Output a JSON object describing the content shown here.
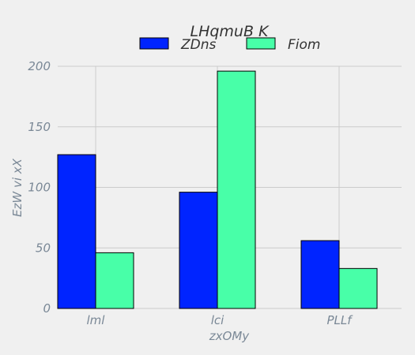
{
  "chart_data": {
    "type": "bar",
    "title": "LHqmuB K",
    "xlabel": "zxOMy",
    "ylabel": "EzW vi xX",
    "categories": [
      "lml",
      "lci",
      "PLLf"
    ],
    "series": [
      {
        "name": "ZDns",
        "values": [
          127,
          96,
          56
        ],
        "color": "#0024ff"
      },
      {
        "name": "Fiom",
        "values": [
          46,
          196,
          33
        ],
        "color": "#48ffa8"
      }
    ],
    "ylim": [
      0,
      200
    ],
    "yticks": [
      0,
      50,
      100,
      150,
      200
    ],
    "grid": true,
    "legend_position": "top-center",
    "background": "#f0f0f0"
  }
}
